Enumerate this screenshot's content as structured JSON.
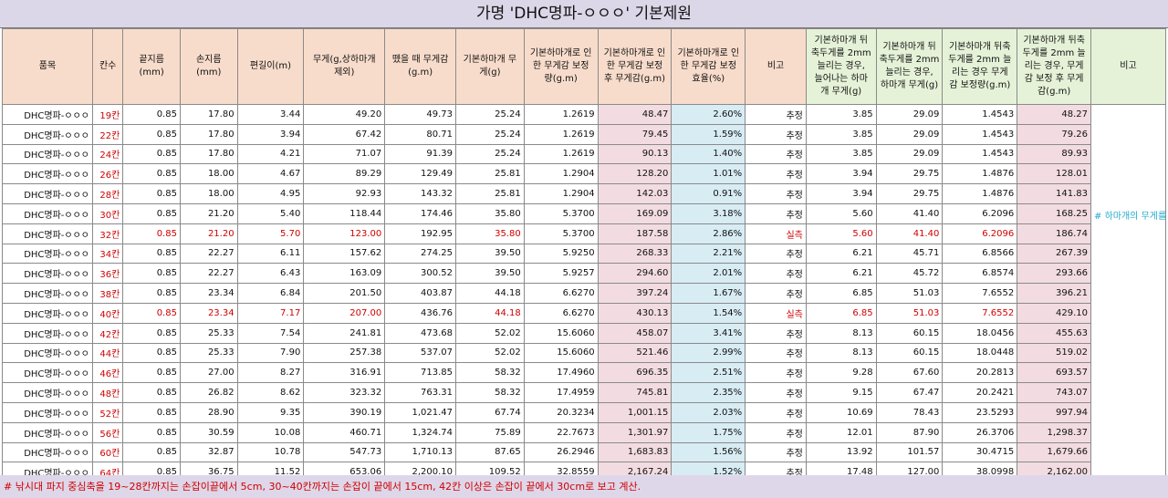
{
  "title": "가명 'DHC명파-ㅇㅇㅇ' 기본제원",
  "headers": [
    "품목",
    "칸수",
    "끝지름\n(mm)",
    "손지름\n(mm)",
    "편길이(m)",
    "무게(g,상하마개\n제외)",
    "뗐을 때 무게감\n(g.m)",
    "기본하마개 무\n게(g)",
    "기본하마개로 인\n한 무게감 보정\n량(g.m)",
    "기본하마개로 인\n한 무게감 보정\n후 무게감(g.m)",
    "기본하마개로 인\n한 무게감 보정\n효율(%)",
    "비고",
    "기본하마개 뒤\n축두게를 2mm\n늘리는 경우,\n늘어나는 하마\n개 무게(g)",
    "기본하마개 뒤\n축두게를 2mm\n늘리는 경우,\n하마개 무게(g)",
    "기본하마개 뒤축\n두게를 2mm 늘\n리는 경우 무게\n감 보정량(g.m)",
    "기본하마개 뒤축\n두게를 2mm 늘\n리는 경우, 무게\n감 보정 후 무게\n감(g.m)",
    "비고"
  ],
  "rows": [
    {
      "name": "DHC명파-ㅇㅇㅇ",
      "kan": "19칸",
      "tip": "0.85",
      "grip": "17.80",
      "len": "3.44",
      "wt": "49.20",
      "feel": "49.73",
      "cap": "25.24",
      "corr": "1.2619",
      "after": "48.47",
      "eff": "2.60%",
      "note": "추정",
      "inc": "3.85",
      "capw": "29.09",
      "corr2": "1.4543",
      "after2": "48.27"
    },
    {
      "name": "DHC명파-ㅇㅇㅇ",
      "kan": "22칸",
      "tip": "0.85",
      "grip": "17.80",
      "len": "3.94",
      "wt": "67.42",
      "feel": "80.71",
      "cap": "25.24",
      "corr": "1.2619",
      "after": "79.45",
      "eff": "1.59%",
      "note": "추정",
      "inc": "3.85",
      "capw": "29.09",
      "corr2": "1.4543",
      "after2": "79.26"
    },
    {
      "name": "DHC명파-ㅇㅇㅇ",
      "kan": "24칸",
      "tip": "0.85",
      "grip": "17.80",
      "len": "4.21",
      "wt": "71.07",
      "feel": "91.39",
      "cap": "25.24",
      "corr": "1.2619",
      "after": "90.13",
      "eff": "1.40%",
      "note": "추정",
      "inc": "3.85",
      "capw": "29.09",
      "corr2": "1.4543",
      "after2": "89.93"
    },
    {
      "name": "DHC명파-ㅇㅇㅇ",
      "kan": "26칸",
      "tip": "0.85",
      "grip": "18.00",
      "len": "4.67",
      "wt": "89.29",
      "feel": "129.49",
      "cap": "25.81",
      "corr": "1.2904",
      "after": "128.20",
      "eff": "1.01%",
      "note": "추정",
      "inc": "3.94",
      "capw": "29.75",
      "corr2": "1.4876",
      "after2": "128.01"
    },
    {
      "name": "DHC명파-ㅇㅇㅇ",
      "kan": "28칸",
      "tip": "0.85",
      "grip": "18.00",
      "len": "4.95",
      "wt": "92.93",
      "feel": "143.32",
      "cap": "25.81",
      "corr": "1.2904",
      "after": "142.03",
      "eff": "0.91%",
      "note": "추정",
      "inc": "3.94",
      "capw": "29.75",
      "corr2": "1.4876",
      "after2": "141.83"
    },
    {
      "name": "DHC명파-ㅇㅇㅇ",
      "kan": "30칸",
      "tip": "0.85",
      "grip": "21.20",
      "len": "5.40",
      "wt": "118.44",
      "feel": "174.46",
      "cap": "35.80",
      "corr": "5.3700",
      "after": "169.09",
      "eff": "3.18%",
      "note": "추정",
      "inc": "5.60",
      "capw": "41.40",
      "corr2": "6.2096",
      "after2": "168.25"
    },
    {
      "name": "DHC명파-ㅇㅇㅇ",
      "kan": "32칸",
      "tip": "0.85",
      "grip": "21.20",
      "len": "5.70",
      "wt": "123.00",
      "feel": "192.95",
      "cap": "35.80",
      "corr": "5.3700",
      "after": "187.58",
      "eff": "2.86%",
      "note": "실측",
      "inc": "5.60",
      "capw": "41.40",
      "corr2": "6.2096",
      "after2": "186.74",
      "measured": true
    },
    {
      "name": "DHC명파-ㅇㅇㅇ",
      "kan": "34칸",
      "tip": "0.85",
      "grip": "22.27",
      "len": "6.11",
      "wt": "157.62",
      "feel": "274.25",
      "cap": "39.50",
      "corr": "5.9250",
      "after": "268.33",
      "eff": "2.21%",
      "note": "추정",
      "inc": "6.21",
      "capw": "45.71",
      "corr2": "6.8566",
      "after2": "267.39"
    },
    {
      "name": "DHC명파-ㅇㅇㅇ",
      "kan": "36칸",
      "tip": "0.85",
      "grip": "22.27",
      "len": "6.43",
      "wt": "163.09",
      "feel": "300.52",
      "cap": "39.50",
      "corr": "5.9257",
      "after": "294.60",
      "eff": "2.01%",
      "note": "추정",
      "inc": "6.21",
      "capw": "45.72",
      "corr2": "6.8574",
      "after2": "293.66"
    },
    {
      "name": "DHC명파-ㅇㅇㅇ",
      "kan": "38칸",
      "tip": "0.85",
      "grip": "23.34",
      "len": "6.84",
      "wt": "201.50",
      "feel": "403.87",
      "cap": "44.18",
      "corr": "6.6270",
      "after": "397.24",
      "eff": "1.67%",
      "note": "추정",
      "inc": "6.85",
      "capw": "51.03",
      "corr2": "7.6552",
      "after2": "396.21"
    },
    {
      "name": "DHC명파-ㅇㅇㅇ",
      "kan": "40칸",
      "tip": "0.85",
      "grip": "23.34",
      "len": "7.17",
      "wt": "207.00",
      "feel": "436.76",
      "cap": "44.18",
      "corr": "6.6270",
      "after": "430.13",
      "eff": "1.54%",
      "note": "실측",
      "inc": "6.85",
      "capw": "51.03",
      "corr2": "7.6552",
      "after2": "429.10",
      "measured": true
    },
    {
      "name": "DHC명파-ㅇㅇㅇ",
      "kan": "42칸",
      "tip": "0.85",
      "grip": "25.33",
      "len": "7.54",
      "wt": "241.81",
      "feel": "473.68",
      "cap": "52.02",
      "corr": "15.6060",
      "after": "458.07",
      "eff": "3.41%",
      "note": "추정",
      "inc": "8.13",
      "capw": "60.15",
      "corr2": "18.0456",
      "after2": "455.63"
    },
    {
      "name": "DHC명파-ㅇㅇㅇ",
      "kan": "44칸",
      "tip": "0.85",
      "grip": "25.33",
      "len": "7.90",
      "wt": "257.38",
      "feel": "537.07",
      "cap": "52.02",
      "corr": "15.6060",
      "after": "521.46",
      "eff": "2.99%",
      "note": "추정",
      "inc": "8.13",
      "capw": "60.15",
      "corr2": "18.0448",
      "after2": "519.02"
    },
    {
      "name": "DHC명파-ㅇㅇㅇ",
      "kan": "46칸",
      "tip": "0.85",
      "grip": "27.00",
      "len": "8.27",
      "wt": "316.91",
      "feel": "713.85",
      "cap": "58.32",
      "corr": "17.4960",
      "after": "696.35",
      "eff": "2.51%",
      "note": "추정",
      "inc": "9.28",
      "capw": "67.60",
      "corr2": "20.2813",
      "after2": "693.57"
    },
    {
      "name": "DHC명파-ㅇㅇㅇ",
      "kan": "48칸",
      "tip": "0.85",
      "grip": "26.82",
      "len": "8.62",
      "wt": "323.32",
      "feel": "763.31",
      "cap": "58.32",
      "corr": "17.4959",
      "after": "745.81",
      "eff": "2.35%",
      "note": "추정",
      "inc": "9.15",
      "capw": "67.47",
      "corr2": "20.2421",
      "after2": "743.07"
    },
    {
      "name": "DHC명파-ㅇㅇㅇ",
      "kan": "52칸",
      "tip": "0.85",
      "grip": "28.90",
      "len": "9.35",
      "wt": "390.19",
      "feel": "1,021.47",
      "cap": "67.74",
      "corr": "20.3234",
      "after": "1,001.15",
      "eff": "2.03%",
      "note": "추정",
      "inc": "10.69",
      "capw": "78.43",
      "corr2": "23.5293",
      "after2": "997.94"
    },
    {
      "name": "DHC명파-ㅇㅇㅇ",
      "kan": "56칸",
      "tip": "0.85",
      "grip": "30.59",
      "len": "10.08",
      "wt": "460.71",
      "feel": "1,324.74",
      "cap": "75.89",
      "corr": "22.7673",
      "after": "1,301.97",
      "eff": "1.75%",
      "note": "추정",
      "inc": "12.01",
      "capw": "87.90",
      "corr2": "26.3706",
      "after2": "1,298.37"
    },
    {
      "name": "DHC명파-ㅇㅇㅇ",
      "kan": "60칸",
      "tip": "0.85",
      "grip": "32.87",
      "len": "10.78",
      "wt": "547.73",
      "feel": "1,710.13",
      "cap": "87.65",
      "corr": "26.2946",
      "after": "1,683.83",
      "eff": "1.56%",
      "note": "추정",
      "inc": "13.92",
      "capw": "101.57",
      "corr2": "30.4715",
      "after2": "1,679.66"
    },
    {
      "name": "DHC명파-ㅇㅇㅇ",
      "kan": "64칸",
      "tip": "0.85",
      "grip": "36.75",
      "len": "11.52",
      "wt": "653.06",
      "feel": "2,200.10",
      "cap": "109.52",
      "corr": "32.8559",
      "after": "2,167.24",
      "eff": "1.52%",
      "note": "추정",
      "inc": "17.48",
      "capw": "127.00",
      "corr2": "38.0998",
      "after2": "2,162.00"
    }
  ],
  "remark": "# 하마개의 무게를 현재보다 더 늘리는 것은 낚시대를 들었을 때 뜸직한 느낌은 늘어날 지언정, 실질적으로 낚시대를 다룸에 있어서 쾌적함을 크게 개선시켜주지는 못할 것으로 보입니다.",
  "footer": "# 낚시대 파지 중심축을 19~28칸까지는 손잡이끝에서 5cm, 30~40칸까지는 손잡이 끝에서 15cm, 42칸 이상은 손잡이 끝에서 30cm로 보고 계산.",
  "colors": {
    "header_orange": "#f8dccb",
    "header_green": "#e6f2d8",
    "pink": "#f2dce2",
    "blue": "#d8ecf4",
    "title_bar": "#dcd7e8",
    "red": "#d00000",
    "remark": "#22aacc"
  }
}
